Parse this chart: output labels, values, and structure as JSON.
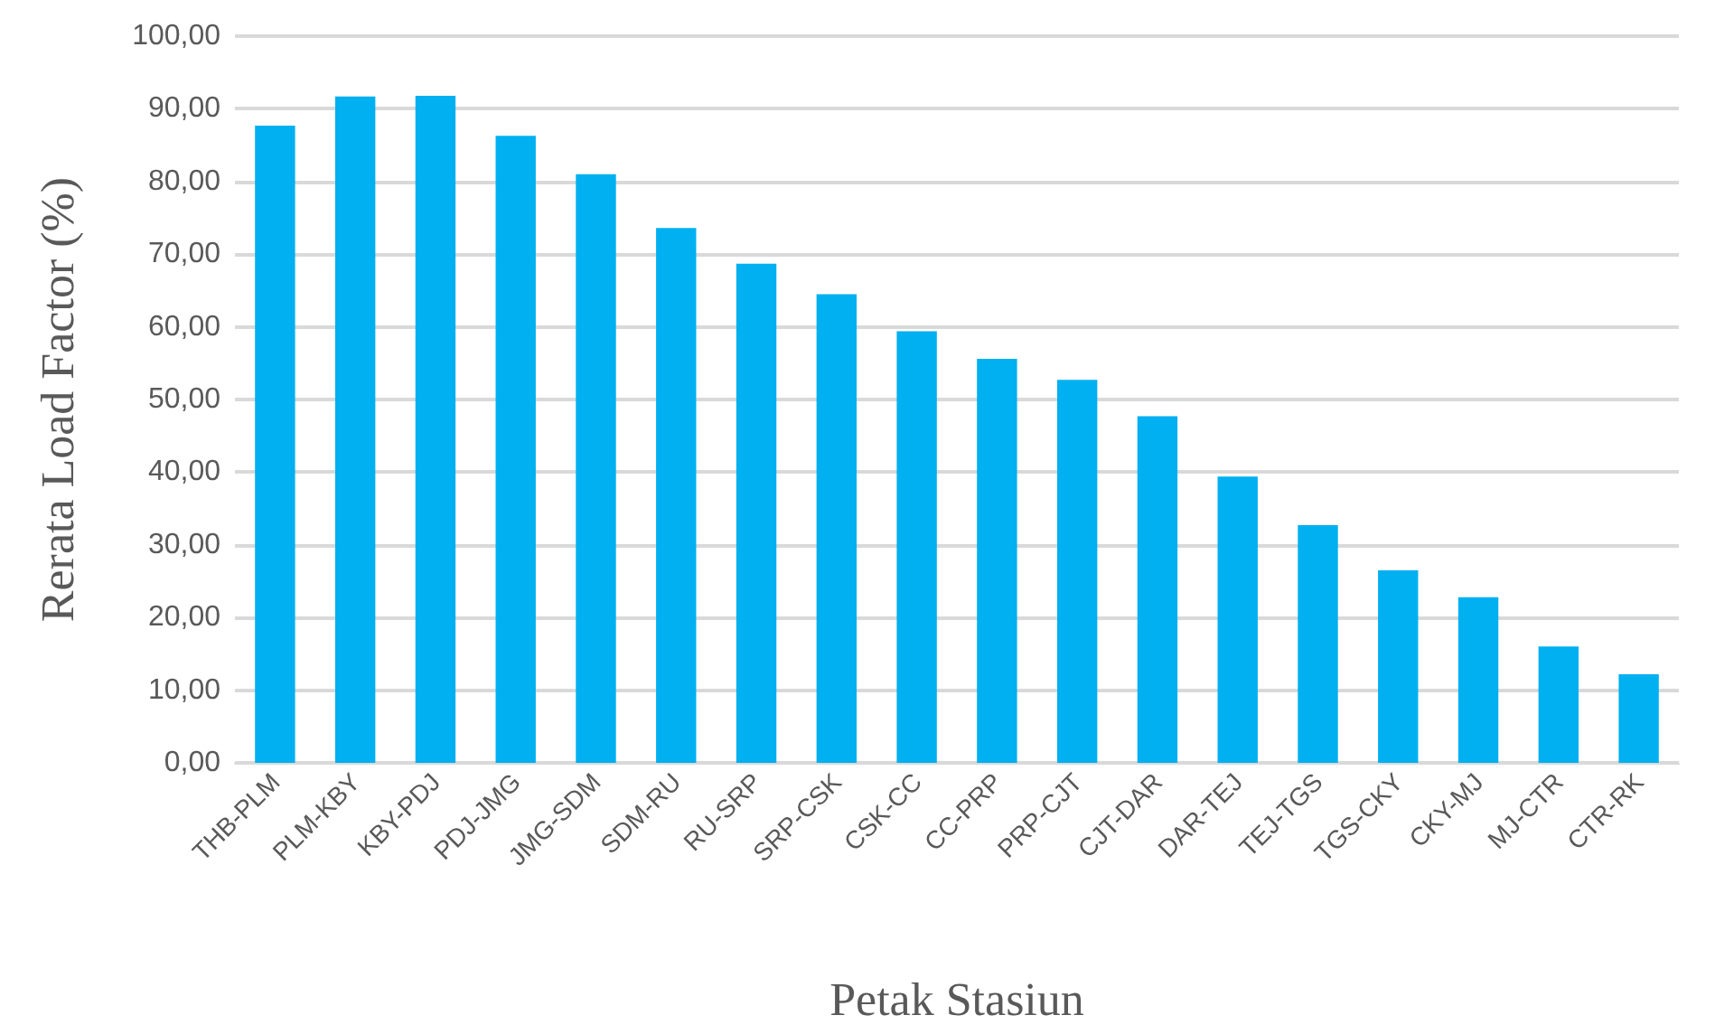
{
  "chart_data": {
    "type": "bar",
    "xlabel": "Petak Stasiun",
    "ylabel": "Rerata Load Factor (%)",
    "categories": [
      "THB-PLM",
      "PLM-KBY",
      "KBY-PDJ",
      "PDJ-JMG",
      "JMG-SDM",
      "SDM-RU",
      "RU-SRP",
      "SRP-CSK",
      "CSK-CC",
      "CC-PRP",
      "PRP-CJT",
      "CJT-DAR",
      "DAR-TEJ",
      "TEJ-TGS",
      "TGS-CKY",
      "CKY-MJ",
      "MJ-CTR",
      "CTR-RK"
    ],
    "values": [
      87.7,
      91.7,
      91.8,
      86.3,
      81.0,
      73.6,
      68.7,
      64.5,
      59.4,
      55.6,
      52.7,
      47.7,
      39.4,
      32.7,
      26.5,
      22.8,
      16.0,
      12.2
    ],
    "color": "#00b0f0",
    "ylim": [
      0,
      100
    ],
    "yticks": [
      {
        "value": 0,
        "label": "0,00"
      },
      {
        "value": 10,
        "label": "10,00"
      },
      {
        "value": 20,
        "label": "20,00"
      },
      {
        "value": 30,
        "label": "30,00"
      },
      {
        "value": 40,
        "label": "40,00"
      },
      {
        "value": 50,
        "label": "50,00"
      },
      {
        "value": 60,
        "label": "60,00"
      },
      {
        "value": 70,
        "label": "70,00"
      },
      {
        "value": 80,
        "label": "80,00"
      },
      {
        "value": 90,
        "label": "90,00"
      },
      {
        "value": 100,
        "label": "100,00"
      }
    ],
    "grid": "y"
  }
}
